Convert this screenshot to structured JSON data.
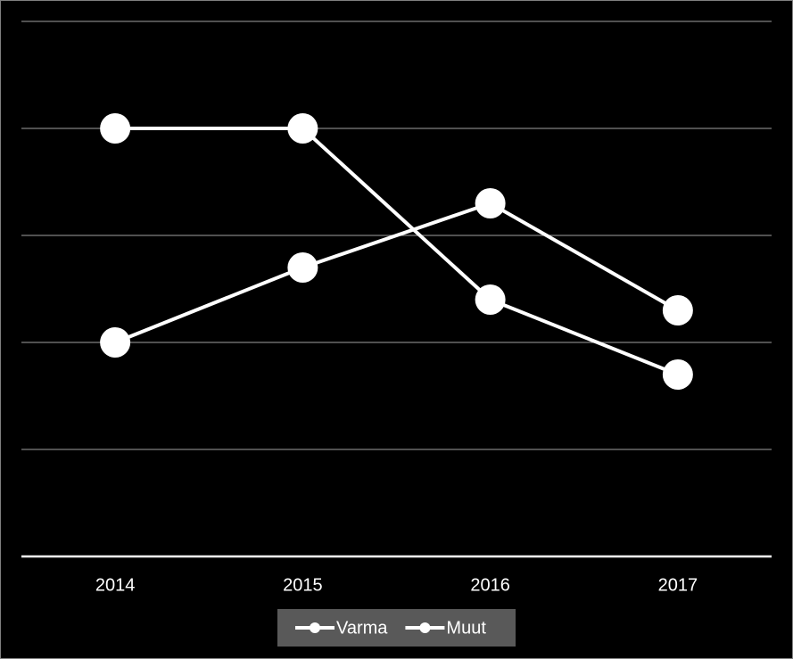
{
  "chart_data": {
    "type": "line",
    "categories": [
      "2014",
      "2015",
      "2016",
      "2017"
    ],
    "series": [
      {
        "name": "Varma",
        "color": "#ffffff",
        "values": [
          4,
          4,
          2.4,
          1.7
        ]
      },
      {
        "name": "Muut",
        "color": "#ffffff",
        "values": [
          2,
          2.7,
          3.3,
          2.3
        ]
      }
    ],
    "ylim": [
      0,
      5
    ],
    "yticks": [
      0,
      1,
      2,
      3,
      4,
      5
    ],
    "show_ytick_labels": false,
    "grid": true,
    "legend": "bottom"
  }
}
